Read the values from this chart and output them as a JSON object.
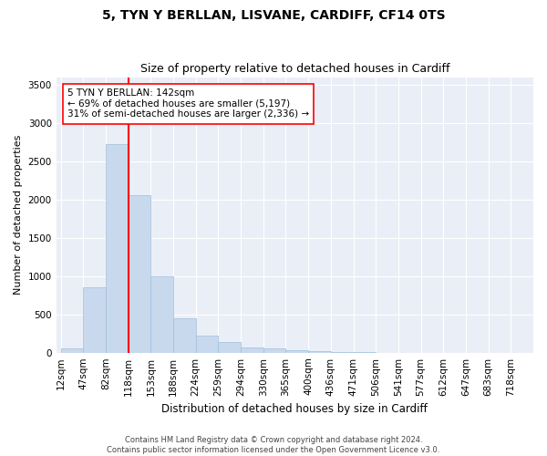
{
  "title": "5, TYN Y BERLLAN, LISVANE, CARDIFF, CF14 0TS",
  "subtitle": "Size of property relative to detached houses in Cardiff",
  "xlabel": "Distribution of detached houses by size in Cardiff",
  "ylabel": "Number of detached properties",
  "bar_values": [
    60,
    850,
    2720,
    2060,
    1000,
    450,
    225,
    135,
    65,
    55,
    30,
    20,
    10,
    5,
    2,
    1,
    0,
    0,
    0,
    0,
    0
  ],
  "bar_labels": [
    "12sqm",
    "47sqm",
    "82sqm",
    "118sqm",
    "153sqm",
    "188sqm",
    "224sqm",
    "259sqm",
    "294sqm",
    "330sqm",
    "365sqm",
    "400sqm",
    "436sqm",
    "471sqm",
    "506sqm",
    "541sqm",
    "577sqm",
    "612sqm",
    "647sqm",
    "683sqm",
    "718sqm"
  ],
  "bar_color": "#c8d9ee",
  "bar_edgecolor": "#9fbfda",
  "vline_x_index": 3,
  "vline_color": "red",
  "vline_linewidth": 1.5,
  "annotation_line1": "5 TYN Y BERLLAN: 142sqm",
  "annotation_line2": "← 69% of detached houses are smaller (5,197)",
  "annotation_line3": "31% of semi-detached houses are larger (2,336) →",
  "ylim": [
    0,
    3600
  ],
  "yticks": [
    0,
    500,
    1000,
    1500,
    2000,
    2500,
    3000,
    3500
  ],
  "bg_color": "#eaeff7",
  "grid_color": "#ffffff",
  "footer_text": "Contains HM Land Registry data © Crown copyright and database right 2024.\nContains public sector information licensed under the Open Government Licence v3.0.",
  "title_fontsize": 10,
  "subtitle_fontsize": 9,
  "xlabel_fontsize": 8.5,
  "ylabel_fontsize": 8,
  "tick_fontsize": 7.5,
  "annotation_fontsize": 7.5,
  "footer_fontsize": 6
}
